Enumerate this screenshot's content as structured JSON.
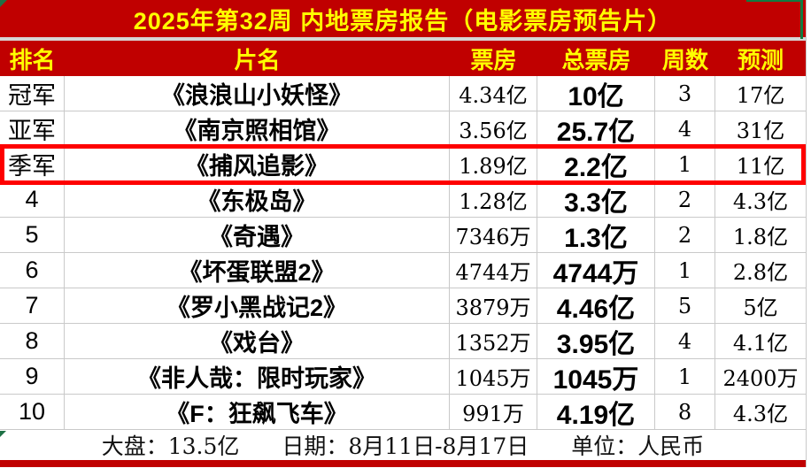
{
  "title": "2025年第32周  内地票房报告（电影票房预告片）",
  "columns": {
    "rank": "排名",
    "film": "片名",
    "box": "票房",
    "total": "总票房",
    "weeks": "周数",
    "forecast": "预测"
  },
  "rows": [
    {
      "rank": "冠军",
      "film": "《浪浪山小妖怪》",
      "box": "4.34亿",
      "total": "10亿",
      "weeks": "3",
      "forecast": "17亿",
      "highlight": false
    },
    {
      "rank": "亚军",
      "film": "《南京照相馆》",
      "box": "3.56亿",
      "total": "25.7亿",
      "weeks": "4",
      "forecast": "31亿",
      "highlight": false
    },
    {
      "rank": "季军",
      "film": "《捕风追影》",
      "box": "1.89亿",
      "total": "2.2亿",
      "weeks": "1",
      "forecast": "11亿",
      "highlight": true
    },
    {
      "rank": "4",
      "film": "《东极岛》",
      "box": "1.28亿",
      "total": "3.3亿",
      "weeks": "2",
      "forecast": "4.3亿",
      "highlight": false
    },
    {
      "rank": "5",
      "film": "《奇遇》",
      "box": "7346万",
      "total": "1.3亿",
      "weeks": "2",
      "forecast": "1.8亿",
      "highlight": false
    },
    {
      "rank": "6",
      "film": "《坏蛋联盟2》",
      "box": "4744万",
      "total": "4744万",
      "weeks": "1",
      "forecast": "2.8亿",
      "highlight": false
    },
    {
      "rank": "7",
      "film": "《罗小黑战记2》",
      "box": "3879万",
      "total": "4.46亿",
      "weeks": "5",
      "forecast": "5亿",
      "highlight": false
    },
    {
      "rank": "8",
      "film": "《戏台》",
      "box": "1352万",
      "total": "3.95亿",
      "weeks": "4",
      "forecast": "4.1亿",
      "highlight": false
    },
    {
      "rank": "9",
      "film": "《非人哉：限时玩家》",
      "box": "1045万",
      "total": "1045万",
      "weeks": "1",
      "forecast": "2400万",
      "highlight": false
    },
    {
      "rank": "10",
      "film": "《F：狂飙飞车》",
      "box": "991万",
      "total": "4.19亿",
      "weeks": "8",
      "forecast": "4.3亿",
      "highlight": false
    }
  ],
  "footer": {
    "market": "大盘：13.5亿",
    "date": "日期：8月11日-8月17日",
    "unit": "单位：人民币"
  },
  "colors": {
    "header_bg": "#C00000",
    "header_text": "#FFFF00",
    "highlight_border": "#FE0000",
    "gridline": "#c9c9c9",
    "bottom_bar": "#C00000",
    "selection_green": "#107c41"
  }
}
